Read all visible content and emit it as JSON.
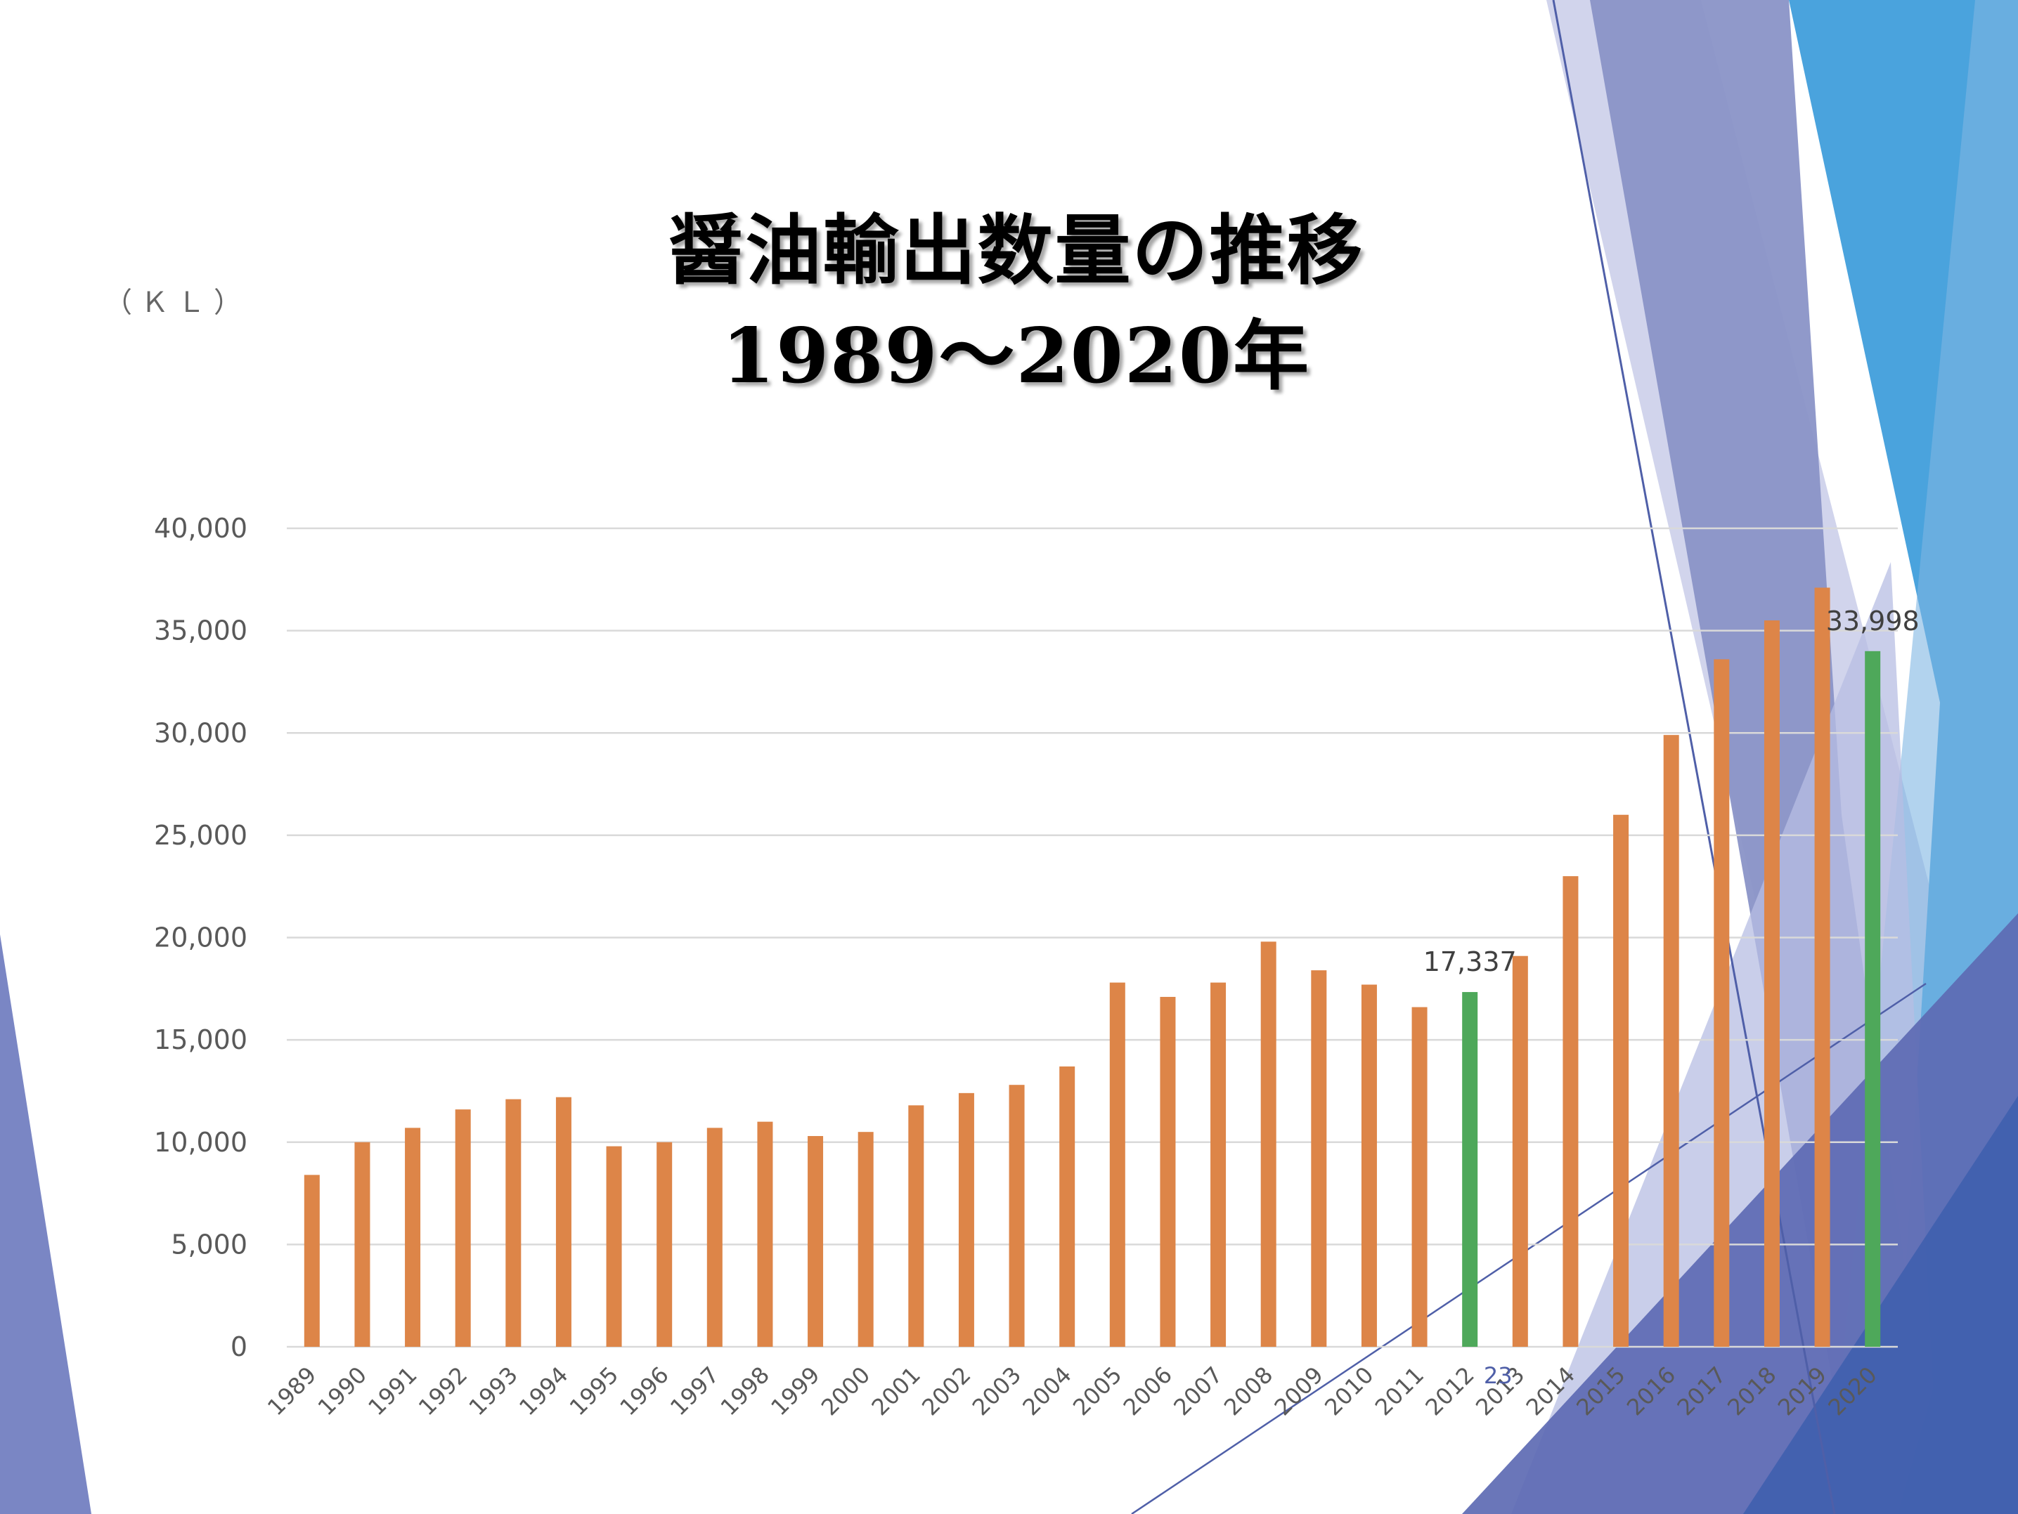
{
  "title": {
    "line1": "醤油輸出数量の推移",
    "line2": "1989～2020年"
  },
  "unit": "（ＫＬ）",
  "colors": {
    "bar": "#dd8548",
    "highlight": "#4ea85a",
    "grid": "#d9d9d9",
    "deco_purple": "#7a86c4",
    "deco_blue": "#4aa3dd"
  },
  "chart_data": {
    "type": "bar",
    "categories": [
      "1989",
      "1990",
      "1991",
      "1992",
      "1993",
      "1994",
      "1995",
      "1996",
      "1997",
      "1998",
      "1999",
      "2000",
      "2001",
      "2002",
      "2003",
      "2004",
      "2005",
      "2006",
      "2007",
      "2008",
      "2009",
      "2010",
      "2011",
      "2012",
      "2013",
      "2014",
      "2015",
      "2016",
      "2017",
      "2018",
      "2019",
      "2020"
    ],
    "series": [
      {
        "values": [
          8400,
          10000,
          10700,
          11600,
          12100,
          12200,
          9800,
          10000,
          10700,
          11000,
          10300,
          10500,
          11800,
          12400,
          12800,
          13700,
          17800,
          17100,
          17800,
          19800,
          18400,
          17700,
          16600,
          17337,
          19100,
          23000,
          26000,
          29900,
          33600,
          35500,
          37100,
          33998
        ]
      }
    ],
    "highlight_categories": [
      "2012",
      "2020"
    ],
    "data_labels": [
      {
        "category": "2012",
        "text": "17,337"
      },
      {
        "category": "2020",
        "text": "33,998"
      }
    ],
    "annotations": [
      {
        "category": "2012",
        "text": "23"
      }
    ],
    "ylim": [
      0,
      40000
    ],
    "yticks": [
      0,
      5000,
      10000,
      15000,
      20000,
      25000,
      30000,
      35000,
      40000
    ],
    "ytick_labels": [
      "0",
      "5,000",
      "10,000",
      "15,000",
      "20,000",
      "25,000",
      "30,000",
      "35,000",
      "40,000"
    ],
    "grid": true,
    "legend": "none",
    "xlabel": "",
    "ylabel": "（ＫＬ）"
  }
}
